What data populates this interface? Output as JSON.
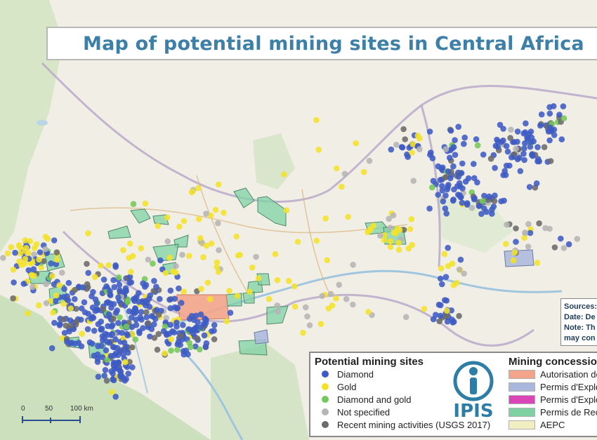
{
  "title": "Map of potential mining sites in Central Africa",
  "sources_box": {
    "lines": [
      "Sources:",
      "Date: De",
      "Note: Th",
      "may con"
    ]
  },
  "legend": {
    "sites_title": "Potential mining sites",
    "sites": [
      {
        "label": "Diamond",
        "color": "#3d5bc4"
      },
      {
        "label": "Gold",
        "color": "#f2e22a"
      },
      {
        "label": "Diamond and gold",
        "color": "#74c85a"
      },
      {
        "label": "Not specified",
        "color": "#b5b5b5"
      },
      {
        "label": "Recent mining activities (USGS 2017)",
        "color": "#6b6b6b"
      }
    ],
    "concessions_title": "Mining concessions",
    "concessions": [
      {
        "label": "Autorisation de",
        "color": "#f3a58c"
      },
      {
        "label": "Permis d'Exploi",
        "color": "#a9b7dc"
      },
      {
        "label": "Permis d'Exploi",
        "color": "#d946b7"
      },
      {
        "label": "Permis de Rech",
        "color": "#7fd1a4"
      },
      {
        "label": "AEPC",
        "color": "#f1efc2"
      }
    ],
    "logo_text": "IPIS"
  },
  "scale": {
    "labels": [
      "0",
      "50",
      "100 km"
    ]
  },
  "colors": {
    "land": "#f1eee6",
    "forest": "#cfe3bf",
    "water": "#b9d6e8",
    "border": "#b6a5c8",
    "road": "#d9b27a",
    "title": "#3d7fa6"
  }
}
